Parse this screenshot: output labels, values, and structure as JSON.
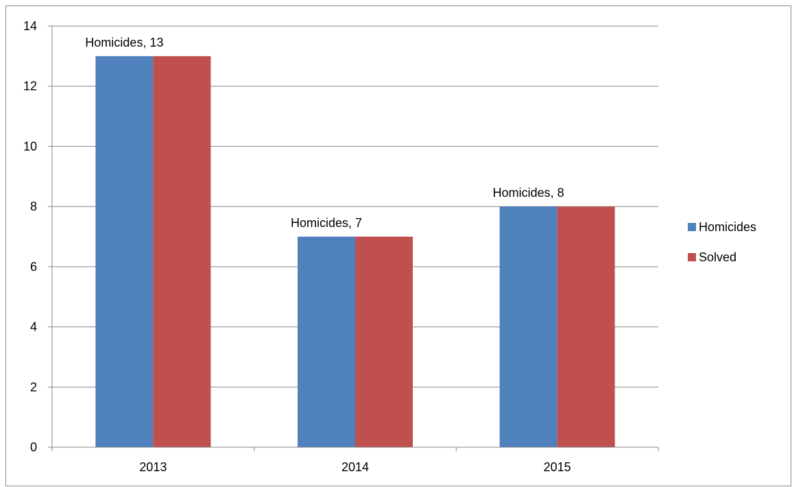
{
  "chart_data": {
    "type": "bar",
    "categories": [
      "2013",
      "2014",
      "2015"
    ],
    "series": [
      {
        "name": "Homicides",
        "values": [
          13,
          7,
          8
        ],
        "color": "#4f81bd"
      },
      {
        "name": "Solved",
        "values": [
          13,
          7,
          8
        ],
        "color": "#c0504d"
      }
    ],
    "data_labels": [
      {
        "text": "Homicides, 13",
        "category_index": 0,
        "series_index": 0
      },
      {
        "text": "Homicides, 7",
        "category_index": 1,
        "series_index": 0
      },
      {
        "text": "Homicides, 8",
        "category_index": 2,
        "series_index": 0
      }
    ],
    "title": "",
    "xlabel": "",
    "ylabel": "",
    "ylim": [
      0,
      14
    ],
    "yticks": [
      0,
      2,
      4,
      6,
      8,
      10,
      12,
      14
    ],
    "grid": true,
    "legend_position": "right",
    "gridline_color": "#868686"
  }
}
